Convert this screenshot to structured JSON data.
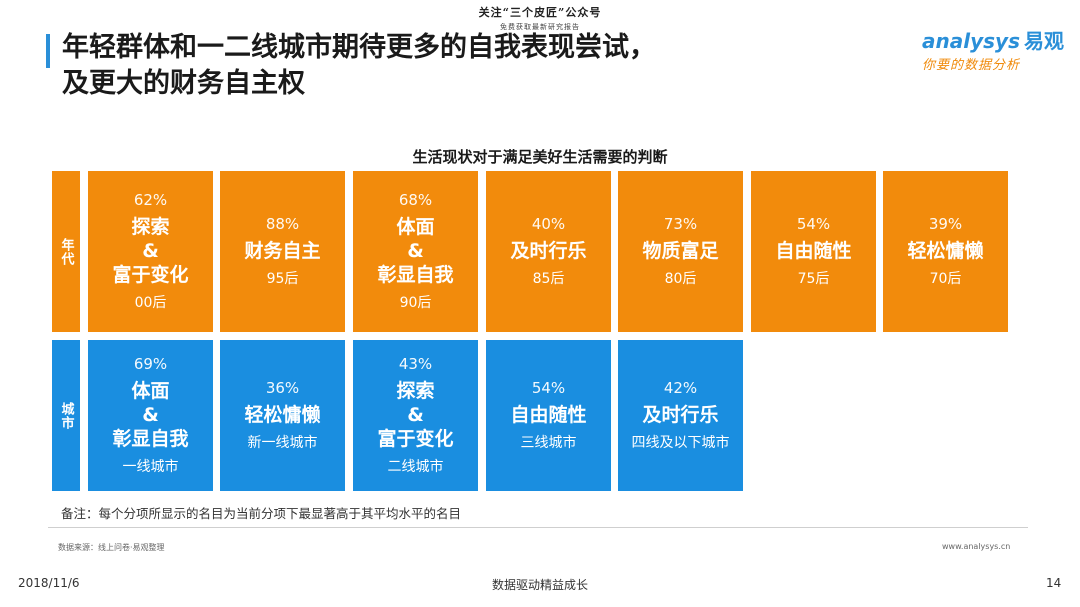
{
  "header": {
    "note_line1": "关注“三个皮匠”公众号",
    "note_line2": "免费获取最新研究报告"
  },
  "title": {
    "line1": "年轻群体和一二线城市期待更多的自我表现尝试，",
    "line2": "及更大的财务自主权"
  },
  "brand": {
    "name_latin": "analysys",
    "name_cn": "易观",
    "slogan": "你要的数据分析"
  },
  "chart_title": "生活现状对于满足美好生活需要的判断",
  "chart_data": {
    "type": "table",
    "title": "生活现状对于满足美好生活需要的判断",
    "rows": [
      {
        "label": "年代",
        "color": "#f28b0c",
        "cells": [
          {
            "pct": "62%",
            "value": 62,
            "name": "探索\n&\n富于变化",
            "group": "00后"
          },
          {
            "pct": "88%",
            "value": 88,
            "name": "财务自主",
            "group": "95后"
          },
          {
            "pct": "68%",
            "value": 68,
            "name": "体面\n&\n彰显自我",
            "group": "90后"
          },
          {
            "pct": "40%",
            "value": 40,
            "name": "及时行乐",
            "group": "85后"
          },
          {
            "pct": "73%",
            "value": 73,
            "name": "物质富足",
            "group": "80后"
          },
          {
            "pct": "54%",
            "value": 54,
            "name": "自由随性",
            "group": "75后"
          },
          {
            "pct": "39%",
            "value": 39,
            "name": "轻松慵懒",
            "group": "70后"
          }
        ]
      },
      {
        "label": "城市",
        "color": "#1a8ee0",
        "cells": [
          {
            "pct": "69%",
            "value": 69,
            "name": "体面\n&\n彰显自我",
            "group": "一线城市"
          },
          {
            "pct": "36%",
            "value": 36,
            "name": "轻松慵懒",
            "group": "新一线城市"
          },
          {
            "pct": "43%",
            "value": 43,
            "name": "探索\n&\n富于变化",
            "group": "二线城市"
          },
          {
            "pct": "54%",
            "value": 54,
            "name": "自由随性",
            "group": "三线城市"
          },
          {
            "pct": "42%",
            "value": 42,
            "name": "及时行乐",
            "group": "四线及以下城市"
          }
        ]
      }
    ]
  },
  "note": "备注：每个分项所显示的名目为当前分项下最显著高于其平均水平的名目",
  "source": "数据来源：线上问卷·易观整理",
  "site": "www.analysys.cn",
  "footer": {
    "date": "2018/11/6",
    "center": "数据驱动精益成长",
    "page": "14"
  }
}
